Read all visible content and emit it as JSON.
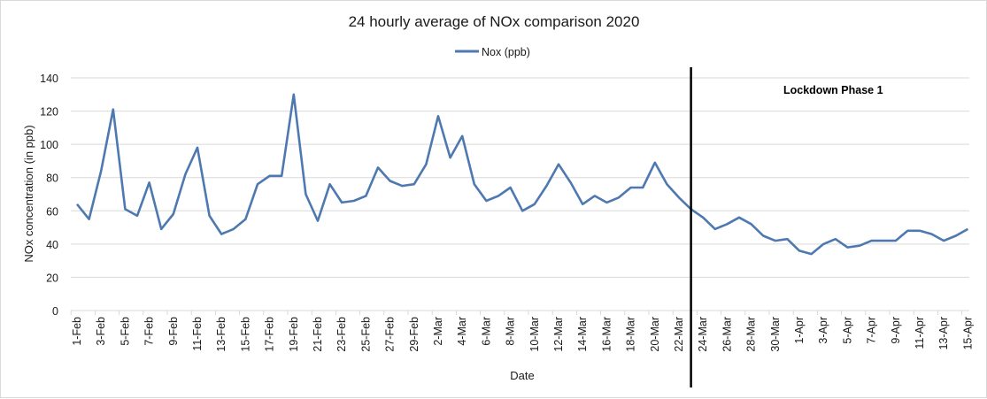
{
  "chart_data": {
    "type": "line",
    "title": "24 hourly average of NOx comparison 2020",
    "xlabel": "Date",
    "ylabel": "NOx concentration (in ppb)",
    "ylim": [
      0,
      140
    ],
    "yticks": [
      0,
      20,
      40,
      60,
      80,
      100,
      120,
      140
    ],
    "grid": true,
    "legend_position": "top",
    "x": [
      "1-Feb",
      "2-Feb",
      "3-Feb",
      "4-Feb",
      "5-Feb",
      "6-Feb",
      "7-Feb",
      "8-Feb",
      "9-Feb",
      "10-Feb",
      "11-Feb",
      "12-Feb",
      "13-Feb",
      "14-Feb",
      "15-Feb",
      "16-Feb",
      "17-Feb",
      "18-Feb",
      "19-Feb",
      "20-Feb",
      "21-Feb",
      "22-Feb",
      "23-Feb",
      "24-Feb",
      "25-Feb",
      "26-Feb",
      "27-Feb",
      "28-Feb",
      "29-Feb",
      "1-Mar",
      "2-Mar",
      "3-Mar",
      "4-Mar",
      "5-Mar",
      "6-Mar",
      "7-Mar",
      "8-Mar",
      "9-Mar",
      "10-Mar",
      "11-Mar",
      "12-Mar",
      "13-Mar",
      "14-Mar",
      "15-Mar",
      "16-Mar",
      "17-Mar",
      "18-Mar",
      "19-Mar",
      "20-Mar",
      "21-Mar",
      "22-Mar",
      "23-Mar",
      "24-Mar",
      "25-Mar",
      "26-Mar",
      "27-Mar",
      "28-Mar",
      "29-Mar",
      "30-Mar",
      "31-Mar",
      "1-Apr",
      "2-Apr",
      "3-Apr",
      "4-Apr",
      "5-Apr",
      "6-Apr",
      "7-Apr",
      "8-Apr",
      "9-Apr",
      "10-Apr",
      "11-Apr",
      "12-Apr",
      "13-Apr",
      "14-Apr",
      "15-Apr"
    ],
    "xtick_labels": [
      "1-Feb",
      "3-Feb",
      "5-Feb",
      "7-Feb",
      "9-Feb",
      "11-Feb",
      "13-Feb",
      "15-Feb",
      "17-Feb",
      "19-Feb",
      "21-Feb",
      "23-Feb",
      "25-Feb",
      "27-Feb",
      "29-Feb",
      "2-Mar",
      "4-Mar",
      "6-Mar",
      "8-Mar",
      "10-Mar",
      "12-Mar",
      "14-Mar",
      "16-Mar",
      "18-Mar",
      "20-Mar",
      "22-Mar",
      "24-Mar",
      "26-Mar",
      "28-Mar",
      "30-Mar",
      "1-Apr",
      "3-Apr",
      "5-Apr",
      "7-Apr",
      "9-Apr",
      "11-Apr",
      "13-Apr",
      "15-Apr"
    ],
    "series": [
      {
        "name": "Nox (ppb)",
        "color": "#4e79b0",
        "values": [
          64,
          55,
          84,
          121,
          61,
          57,
          77,
          49,
          58,
          82,
          98,
          57,
          46,
          49,
          55,
          76,
          81,
          81,
          130,
          70,
          54,
          76,
          65,
          66,
          69,
          86,
          78,
          75,
          76,
          88,
          117,
          92,
          105,
          76,
          66,
          69,
          74,
          60,
          64,
          75,
          88,
          77,
          64,
          69,
          65,
          68,
          74,
          74,
          89,
          76,
          68,
          61,
          56,
          49,
          52,
          56,
          52,
          45,
          42,
          43,
          36,
          34,
          40,
          43,
          38,
          39,
          42,
          42,
          42,
          48,
          48,
          46,
          42,
          45,
          49
        ]
      }
    ],
    "annotations": [
      {
        "type": "vertical-line",
        "at": "23-Mar",
        "color": "#000000"
      },
      {
        "type": "text",
        "text": "Lockdown Phase 1",
        "bold": true
      }
    ]
  },
  "colors": {
    "series": "#4e79b0",
    "grid": "#d9d9d9",
    "marker_line": "#000000"
  }
}
